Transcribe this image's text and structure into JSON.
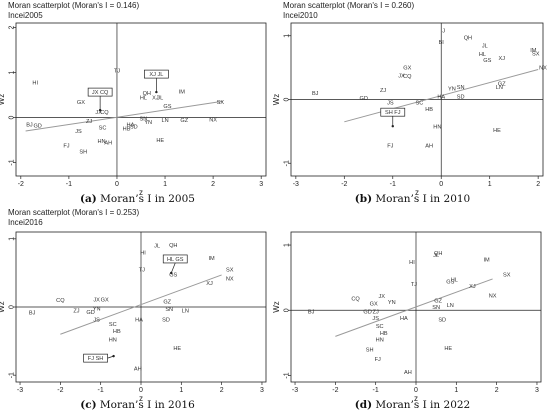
{
  "chart_data": [
    {
      "type": "scatter",
      "title": "Moran scatterplot (Moran's I = 0.146)",
      "variable": "Incei2005",
      "xlabel": "z",
      "ylabel": "Wz",
      "xlim": [
        -2.1,
        3.1
      ],
      "ylim": [
        -1.3,
        2.1
      ],
      "xticks": [
        -2,
        -1,
        0,
        1,
        2,
        3
      ],
      "yticks": [
        -1,
        0,
        1,
        2
      ],
      "fit_line": [
        [
          -1.9,
          -0.3
        ],
        [
          2.2,
          0.36
        ]
      ],
      "boxes": [
        {
          "text": "JX CQ",
          "arrow_to": [
            -0.35,
            0.12
          ]
        },
        {
          "text": "XJ JL",
          "arrow_to": [
            0.82,
            0.52
          ]
        }
      ],
      "points": [
        {
          "label": "HI",
          "z": -1.7,
          "wz": 0.78
        },
        {
          "label": "TJ",
          "z": 0.0,
          "wz": 1.05
        },
        {
          "label": "GX",
          "z": -0.75,
          "wz": 0.34
        },
        {
          "label": "JX",
          "z": -0.38,
          "wz": 0.12
        },
        {
          "label": "CQ",
          "z": -0.26,
          "wz": 0.12
        },
        {
          "label": "ZJ",
          "z": -0.58,
          "wz": -0.08
        },
        {
          "label": "BJ",
          "z": -1.82,
          "wz": -0.15
        },
        {
          "label": "GD",
          "z": -1.65,
          "wz": -0.18
        },
        {
          "label": "SC",
          "z": -0.3,
          "wz": -0.22
        },
        {
          "label": "JS",
          "z": -0.8,
          "wz": -0.3
        },
        {
          "label": "HB",
          "z": 0.2,
          "wz": -0.24
        },
        {
          "label": "SD",
          "z": 0.35,
          "wz": -0.2
        },
        {
          "label": "HA",
          "z": 0.28,
          "wz": -0.16
        },
        {
          "label": "SN",
          "z": 0.55,
          "wz": -0.02
        },
        {
          "label": "YN",
          "z": 0.65,
          "wz": -0.1
        },
        {
          "label": "LN",
          "z": 1.0,
          "wz": -0.05
        },
        {
          "label": "GZ",
          "z": 1.4,
          "wz": -0.05
        },
        {
          "label": "NX",
          "z": 2.0,
          "wz": -0.04
        },
        {
          "label": "SX",
          "z": 2.15,
          "wz": 0.35
        },
        {
          "label": "GS",
          "z": 1.05,
          "wz": 0.26
        },
        {
          "label": "HL",
          "z": 0.55,
          "wz": 0.44
        },
        {
          "label": "QH",
          "z": 0.62,
          "wz": 0.55
        },
        {
          "label": "XJ",
          "z": 0.8,
          "wz": 0.45
        },
        {
          "label": "JL",
          "z": 0.9,
          "wz": 0.45
        },
        {
          "label": "IM",
          "z": 1.35,
          "wz": 0.58
        },
        {
          "label": "HN",
          "z": -0.32,
          "wz": -0.52
        },
        {
          "label": "AH",
          "z": -0.18,
          "wz": -0.56
        },
        {
          "label": "FJ",
          "z": -1.05,
          "wz": -0.62
        },
        {
          "label": "SH",
          "z": -0.7,
          "wz": -0.76
        },
        {
          "label": "HE",
          "z": 0.9,
          "wz": -0.5
        }
      ]
    },
    {
      "type": "scatter",
      "title": "Moran scatterplot (Moran's I = 0.260)",
      "variable": "Incei2010",
      "xlabel": "z",
      "ylabel": "Wz",
      "xlim": [
        -3.1,
        2.1
      ],
      "ylim": [
        -1.2,
        1.2
      ],
      "xticks": [
        -3,
        -2,
        -1,
        0,
        1,
        2
      ],
      "yticks": [
        -1,
        0,
        1
      ],
      "fit_line": [
        [
          -2.0,
          -0.35
        ],
        [
          2.0,
          0.47
        ]
      ],
      "boxes": [
        {
          "text": "SH FJ",
          "arrow_to": [
            -1.0,
            -0.45
          ]
        }
      ],
      "points": [
        {
          "label": "J",
          "z": 0.05,
          "wz": 1.08
        },
        {
          "label": "BI",
          "z": 0.0,
          "wz": 0.9
        },
        {
          "label": "QH",
          "z": 0.55,
          "wz": 0.97
        },
        {
          "label": "JL",
          "z": 0.9,
          "wz": 0.85
        },
        {
          "label": "IM",
          "z": 1.9,
          "wz": 0.78
        },
        {
          "label": "SX",
          "z": 1.95,
          "wz": 0.72
        },
        {
          "label": "HL",
          "z": 0.85,
          "wz": 0.71
        },
        {
          "label": "XJ",
          "z": 1.25,
          "wz": 0.65
        },
        {
          "label": "GS",
          "z": 0.95,
          "wz": 0.62
        },
        {
          "label": "NX",
          "z": 2.1,
          "wz": 0.5
        },
        {
          "label": "GX",
          "z": -0.7,
          "wz": 0.5
        },
        {
          "label": "JX",
          "z": -0.82,
          "wz": 0.38
        },
        {
          "label": "CQ",
          "z": -0.7,
          "wz": 0.37
        },
        {
          "label": "GZ",
          "z": 1.25,
          "wz": 0.25
        },
        {
          "label": "LN",
          "z": 1.2,
          "wz": 0.2
        },
        {
          "label": "SN",
          "z": 0.4,
          "wz": 0.2
        },
        {
          "label": "YN",
          "z": 0.22,
          "wz": 0.17
        },
        {
          "label": "ZJ",
          "z": -1.2,
          "wz": 0.15
        },
        {
          "label": "BJ",
          "z": -2.6,
          "wz": 0.1
        },
        {
          "label": "GD",
          "z": -1.6,
          "wz": 0.02
        },
        {
          "label": "HA",
          "z": 0.0,
          "wz": 0.05
        },
        {
          "label": "SD",
          "z": 0.4,
          "wz": 0.05
        },
        {
          "label": "SC",
          "z": -0.45,
          "wz": -0.05
        },
        {
          "label": "JS",
          "z": -1.05,
          "wz": -0.05
        },
        {
          "label": "HB",
          "z": -0.25,
          "wz": -0.15
        },
        {
          "label": "HN",
          "z": -0.08,
          "wz": -0.42
        },
        {
          "label": "AH",
          "z": -0.25,
          "wz": -0.72
        },
        {
          "label": "HE",
          "z": 1.15,
          "wz": -0.48
        },
        {
          "label": "FJ",
          "z": -1.05,
          "wz": -0.72
        }
      ]
    },
    {
      "type": "scatter",
      "title": "Moran scatterplot (Moran's I = 0.253)",
      "variable": "Incei2016",
      "xlabel": "z",
      "ylabel": "Wz",
      "xlim": [
        -3.1,
        3.1
      ],
      "ylim": [
        -1.1,
        1.1
      ],
      "xticks": [
        -3,
        -2,
        -1,
        0,
        1,
        2,
        3
      ],
      "yticks": [
        -1,
        0,
        1
      ],
      "fit_line": [
        [
          -2.0,
          -0.4
        ],
        [
          2.0,
          0.47
        ]
      ],
      "boxes": [
        {
          "text": "HL GS",
          "arrow_to": [
            0.75,
            0.47
          ]
        },
        {
          "text": "FJ SH",
          "arrow_to": [
            -0.68,
            -0.75
          ]
        }
      ],
      "points": [
        {
          "label": "JL",
          "z": 0.4,
          "wz": 0.9
        },
        {
          "label": "QH",
          "z": 0.8,
          "wz": 0.91
        },
        {
          "label": "HI",
          "z": 0.05,
          "wz": 0.8
        },
        {
          "label": "IM",
          "z": 1.75,
          "wz": 0.72
        },
        {
          "label": "TJ",
          "z": 0.02,
          "wz": 0.55
        },
        {
          "label": "GS",
          "z": 0.8,
          "wz": 0.48
        },
        {
          "label": "SX",
          "z": 2.2,
          "wz": 0.55
        },
        {
          "label": "NX",
          "z": 2.2,
          "wz": 0.42
        },
        {
          "label": "XJ",
          "z": 1.7,
          "wz": 0.35
        },
        {
          "label": "JX",
          "z": -1.1,
          "wz": 0.11
        },
        {
          "label": "GX",
          "z": -0.9,
          "wz": 0.11
        },
        {
          "label": "CQ",
          "z": -2.0,
          "wz": 0.1
        },
        {
          "label": "GZ",
          "z": 0.65,
          "wz": 0.08
        },
        {
          "label": "YN",
          "z": -1.1,
          "wz": -0.02
        },
        {
          "label": "ZJ",
          "z": -1.6,
          "wz": -0.05
        },
        {
          "label": "SN",
          "z": 0.7,
          "wz": -0.03
        },
        {
          "label": "LN",
          "z": 1.1,
          "wz": -0.05
        },
        {
          "label": "GD",
          "z": -1.25,
          "wz": -0.07
        },
        {
          "label": "BJ",
          "z": -2.7,
          "wz": -0.08
        },
        {
          "label": "JS",
          "z": -1.1,
          "wz": -0.18
        },
        {
          "label": "HA",
          "z": -0.05,
          "wz": -0.18
        },
        {
          "label": "SD",
          "z": 0.62,
          "wz": -0.18
        },
        {
          "label": "SC",
          "z": -0.7,
          "wz": -0.25
        },
        {
          "label": "HB",
          "z": -0.6,
          "wz": -0.35
        },
        {
          "label": "HN",
          "z": -0.7,
          "wz": -0.48
        },
        {
          "label": "HE",
          "z": 0.9,
          "wz": -0.6
        },
        {
          "label": "AH",
          "z": -0.08,
          "wz": -0.9
        }
      ]
    },
    {
      "type": "scatter",
      "title": "",
      "variable": "",
      "xlabel": "z",
      "ylabel": "Wz",
      "xlim": [
        -3.1,
        3.1
      ],
      "ylim": [
        -1.1,
        1.2
      ],
      "xticks": [
        -3,
        -2,
        -1,
        0,
        1,
        2,
        3
      ],
      "yticks": [
        -1,
        0,
        1
      ],
      "fit_line": [
        [
          -2.0,
          -0.4
        ],
        [
          1.9,
          0.48
        ]
      ],
      "boxes": [],
      "points": [
        {
          "label": "JL",
          "z": 0.5,
          "wz": 0.85
        },
        {
          "label": "QH",
          "z": 0.55,
          "wz": 0.88
        },
        {
          "label": "HI",
          "z": -0.1,
          "wz": 0.74
        },
        {
          "label": "IM",
          "z": 1.75,
          "wz": 0.78
        },
        {
          "label": "SX",
          "z": 2.25,
          "wz": 0.55
        },
        {
          "label": "GS",
          "z": 0.85,
          "wz": 0.44
        },
        {
          "label": "HL",
          "z": 0.95,
          "wz": 0.47
        },
        {
          "label": "TJ",
          "z": -0.05,
          "wz": 0.4
        },
        {
          "label": "XJ",
          "z": 1.4,
          "wz": 0.37
        },
        {
          "label": "NX",
          "z": 1.9,
          "wz": 0.23
        },
        {
          "label": "JX",
          "z": -0.85,
          "wz": 0.22
        },
        {
          "label": "CQ",
          "z": -1.5,
          "wz": 0.18
        },
        {
          "label": "GX",
          "z": -1.05,
          "wz": 0.1
        },
        {
          "label": "GZ",
          "z": 0.55,
          "wz": 0.15
        },
        {
          "label": "YN",
          "z": -0.6,
          "wz": 0.13
        },
        {
          "label": "LN",
          "z": 0.85,
          "wz": 0.08
        },
        {
          "label": "SN",
          "z": 0.5,
          "wz": 0.05
        },
        {
          "label": "GD",
          "z": -1.2,
          "wz": -0.02
        },
        {
          "label": "ZJ",
          "z": -1.0,
          "wz": -0.02
        },
        {
          "label": "BJ",
          "z": -2.6,
          "wz": -0.02
        },
        {
          "label": "JS",
          "z": -1.0,
          "wz": -0.12
        },
        {
          "label": "HA",
          "z": -0.3,
          "wz": -0.12
        },
        {
          "label": "SD",
          "z": 0.65,
          "wz": -0.14
        },
        {
          "label": "SC",
          "z": -0.9,
          "wz": -0.24
        },
        {
          "label": "HB",
          "z": -0.8,
          "wz": -0.35
        },
        {
          "label": "HN",
          "z": -0.9,
          "wz": -0.45
        },
        {
          "label": "SH",
          "z": -1.15,
          "wz": -0.6
        },
        {
          "label": "HE",
          "z": 0.8,
          "wz": -0.58
        },
        {
          "label": "FJ",
          "z": -0.95,
          "wz": -0.75
        },
        {
          "label": "AH",
          "z": -0.2,
          "wz": -0.95
        }
      ]
    }
  ],
  "captions": [
    {
      "letter": "(a)",
      "text": "Moran’s I in 2005"
    },
    {
      "letter": "(b)",
      "text": "Moran’s I in 2010"
    },
    {
      "letter": "(c)",
      "text": "Moran’s I in 2016"
    },
    {
      "letter": "(d)",
      "text": "Moran’s I in 2022"
    }
  ]
}
